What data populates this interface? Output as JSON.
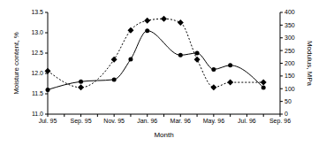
{
  "chart_data": {
    "type": "line",
    "x_label": "Month",
    "y_label": "Moisture content, %",
    "y2_label": "Modulus, MPa",
    "categories": [
      "Jul. 95",
      null,
      "Sep. 95",
      null,
      "Nov. 95",
      null,
      "Jan. 96",
      null,
      "Mar. 96",
      null,
      "May. 96",
      null,
      "Jul. 96",
      null,
      "Sep. 96"
    ],
    "series": [
      {
        "name": "Moisture",
        "color": "#000000",
        "marker": "circle",
        "line_style": "solid",
        "values": [
          11.6,
          null,
          11.8,
          null,
          11.85,
          12.35,
          13.05,
          null,
          12.45,
          12.5,
          12.1,
          12.2,
          null,
          11.65,
          null
        ]
      },
      {
        "name": "Modulus",
        "color": "#000000",
        "marker": "diamond",
        "line_style": "dotted",
        "axis": "y2",
        "values": [
          170,
          null,
          105,
          null,
          215,
          330,
          368,
          375,
          360,
          215,
          105,
          125,
          null,
          125,
          null
        ]
      }
    ],
    "ylim": [
      11.0,
      13.5
    ],
    "yticks": [
      {
        "value": 11.0,
        "label": "11.0"
      },
      11.5,
      {
        "value": 12.0,
        "label": "12.0"
      },
      12.5,
      {
        "value": 13.0,
        "label": "13.0"
      },
      13.5
    ],
    "y2lim": [
      0,
      400
    ],
    "y2ticks": [
      0,
      50,
      100,
      150,
      200,
      250,
      300,
      350,
      400
    ],
    "legend": "top-right",
    "grid": false
  }
}
